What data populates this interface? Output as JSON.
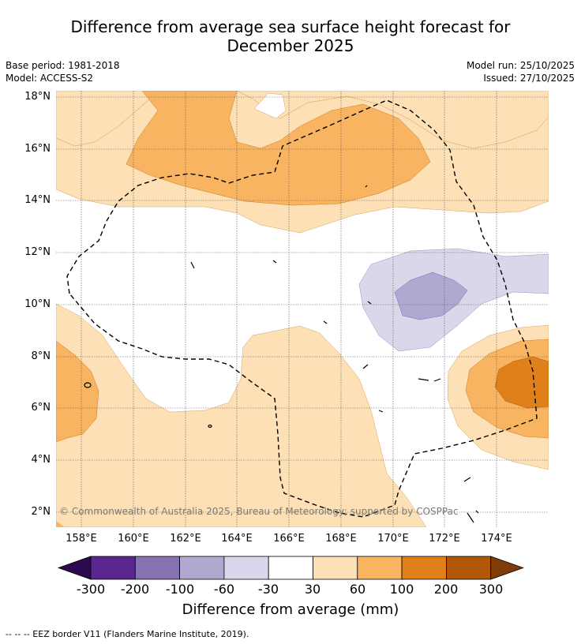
{
  "title_line1": "Difference from average sea surface height forecast for",
  "title_line2": "December 2025",
  "base_period": "Base period: 1981-2018",
  "model": "Model: ACCESS-S2",
  "model_run": "Model run: 25/10/2025",
  "issued": "Issued: 27/10/2025",
  "latitude_labels": [
    "18°N",
    "16°N",
    "14°N",
    "12°N",
    "10°N",
    "8°N",
    "6°N",
    "4°N",
    "2°N"
  ],
  "longitude_labels": [
    "158°E",
    "160°E",
    "162°E",
    "164°E",
    "166°E",
    "168°E",
    "170°E",
    "172°E",
    "174°E"
  ],
  "copyright": "© Commonwealth of Australia 2025, Bureau of Meteorology; supported by COSPPac",
  "colorbar": {
    "title": "Difference from average (mm)",
    "tick_labels": [
      "-300",
      "-200",
      "-100",
      "-60",
      "-30",
      "30",
      "60",
      "100",
      "200",
      "300"
    ],
    "colors": [
      "#2d0a4e",
      "#5a2690",
      "#8572b0",
      "#b1a8d2",
      "#d8d8ea",
      "#ffffff",
      "#fde0b5",
      "#f9b462",
      "#e0801b",
      "#b25706",
      "#7f3b08"
    ]
  },
  "footer": "--  --  -- EEZ border V11 (Flanders Marine Institute, 2019)."
}
